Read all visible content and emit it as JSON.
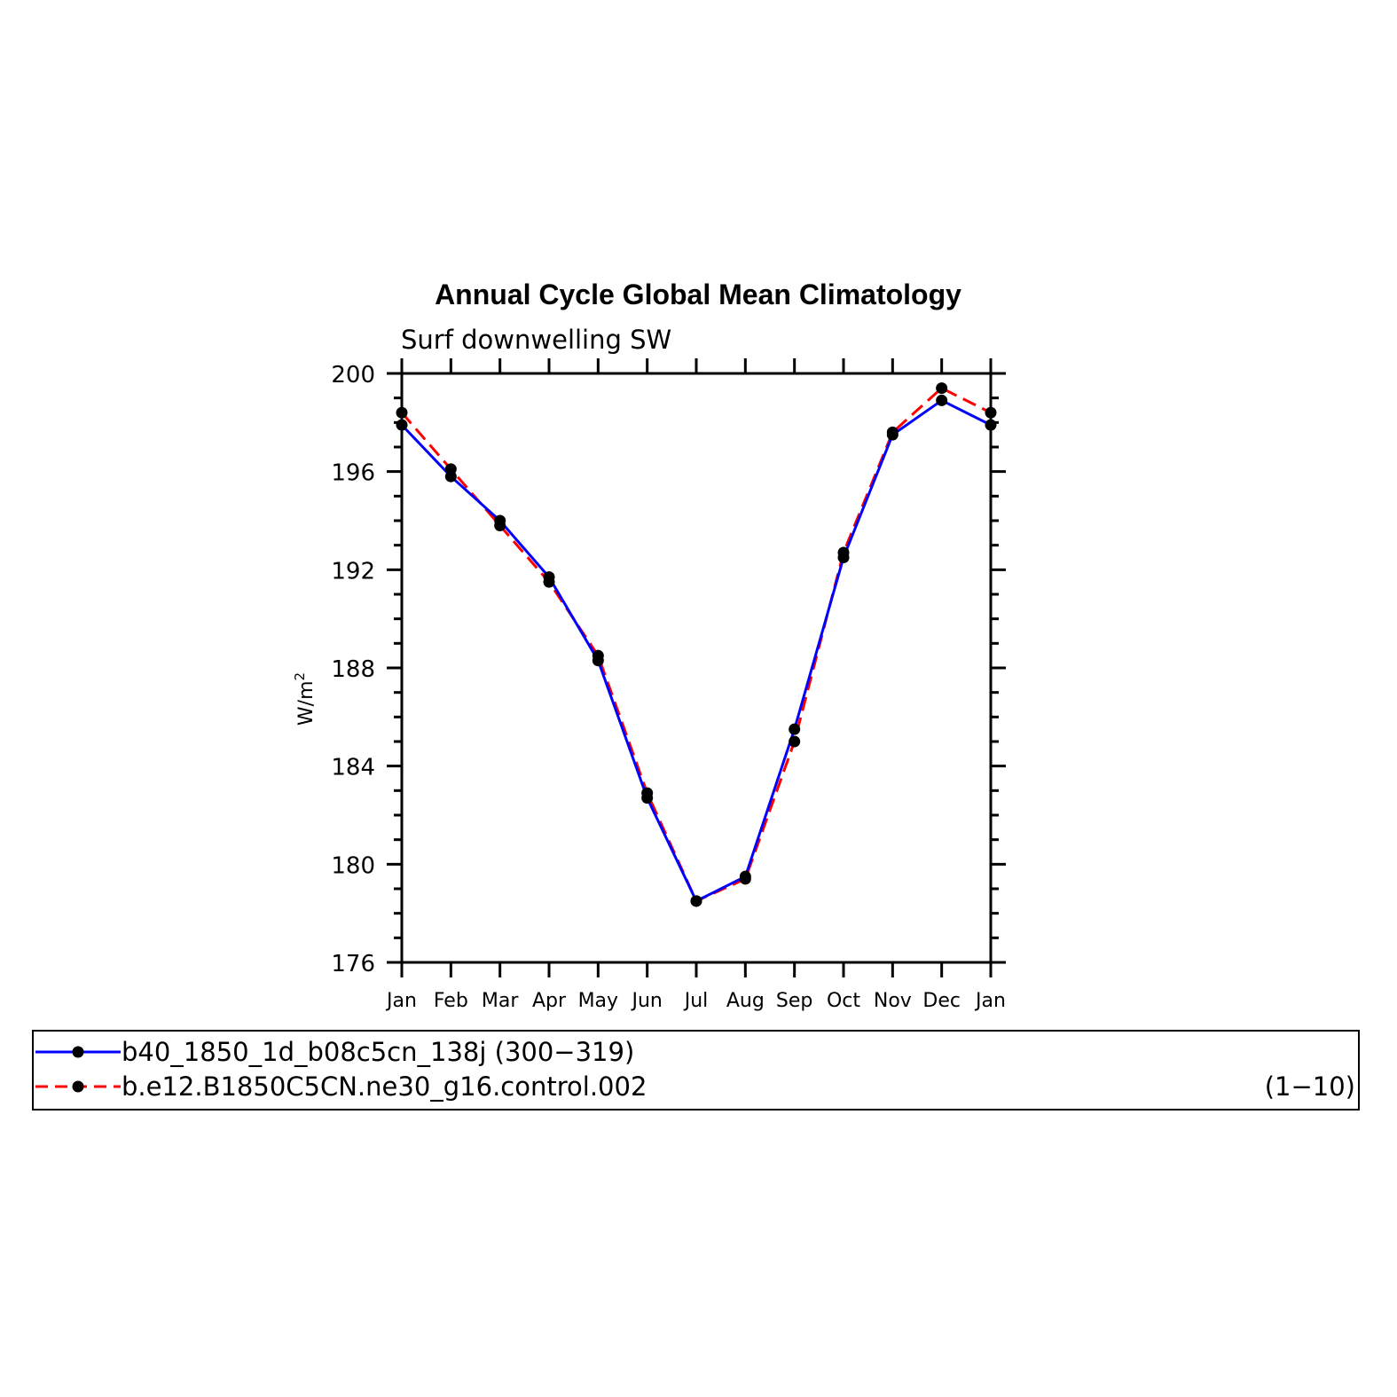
{
  "chart_data": {
    "type": "line",
    "title": "Annual Cycle Global Mean Climatology",
    "subtitle": "Surf downwelling SW",
    "ylabel": "W/m",
    "ylabel_sup": "2",
    "xlabel": "",
    "categories": [
      "Jan",
      "Feb",
      "Mar",
      "Apr",
      "May",
      "Jun",
      "Jul",
      "Aug",
      "Sep",
      "Oct",
      "Nov",
      "Dec",
      "Jan"
    ],
    "ylim": [
      176,
      200
    ],
    "yticks": [
      176,
      180,
      184,
      188,
      192,
      196,
      200
    ],
    "ytick_labels": [
      "176",
      "180",
      "184",
      "188",
      "192",
      "196",
      "200"
    ],
    "grid": false,
    "legend_position": "bottom",
    "series": [
      {
        "name": "b40_1850_1d_b08c5cn_138j (300−319)",
        "color": "#0000ff",
        "dash": "solid",
        "marker": "circle",
        "values": [
          197.9,
          195.8,
          194.0,
          191.7,
          188.3,
          182.7,
          178.5,
          179.5,
          185.5,
          192.5,
          197.5,
          198.9,
          197.9
        ]
      },
      {
        "name": "b.e12.B1850C5CN.ne30_g16.control.002",
        "name_suffix": "(1−10)",
        "color": "#ff0000",
        "dash": "dashed",
        "marker": "circle",
        "values": [
          198.4,
          196.1,
          193.8,
          191.5,
          188.5,
          182.9,
          178.5,
          179.4,
          185.0,
          192.7,
          197.6,
          199.4,
          198.4
        ]
      }
    ]
  }
}
